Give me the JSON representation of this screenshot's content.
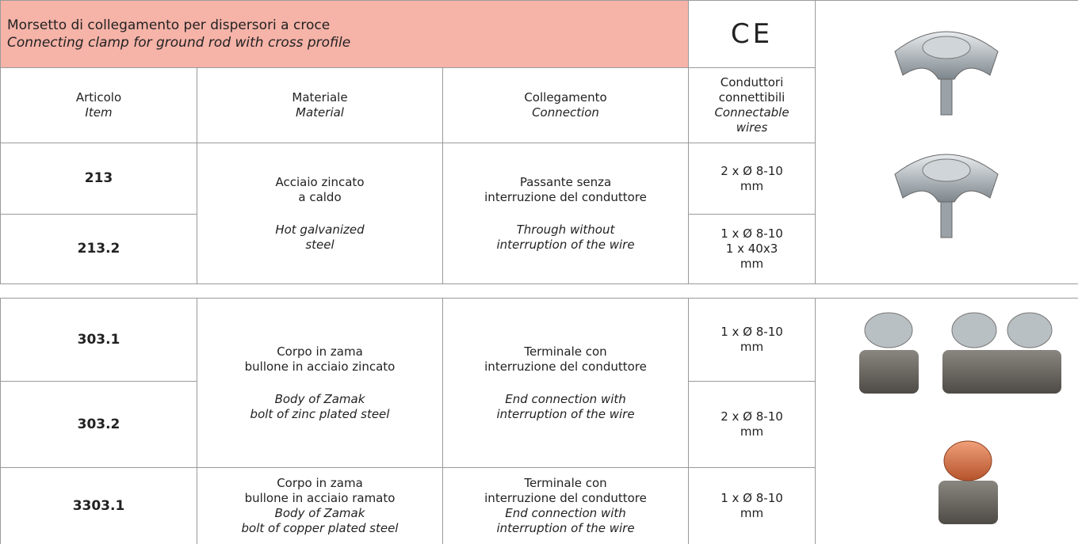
{
  "header": {
    "title": "Morsetto di collegamento per dispersori a croce",
    "subtitle": "Connecting clamp for ground rod with cross profile",
    "mark": "CE"
  },
  "columns": [
    {
      "it": [
        "Articolo"
      ],
      "en": [
        "Item"
      ]
    },
    {
      "it": [
        "Materiale"
      ],
      "en": [
        "Material"
      ]
    },
    {
      "it": [
        "Collegamento"
      ],
      "en": [
        "Connection"
      ]
    },
    {
      "it": [
        "Conduttori",
        "connettibili"
      ],
      "en": [
        "Connectable",
        "wires"
      ]
    }
  ],
  "groups": [
    {
      "rows": [
        {
          "item": "213",
          "wires": [
            "2 x Ø 8-10",
            "mm"
          ]
        },
        {
          "item": "213.2",
          "wires": [
            "1 x Ø 8-10",
            "1 x 40x3",
            "mm"
          ]
        }
      ],
      "material": {
        "it": [
          "Acciaio zincato",
          "a caldo"
        ],
        "en": [
          "Hot galvanized",
          "steel"
        ]
      },
      "connection": {
        "it": [
          "Passante senza",
          "interruzione del conduttore"
        ],
        "en": [
          "Through without",
          "interruption of the wire"
        ]
      }
    },
    {
      "rows": [
        {
          "item": "303.1",
          "wires": [
            "1 x Ø 8-10",
            "mm"
          ]
        },
        {
          "item": "303.2",
          "wires": [
            "2 x Ø 8-10",
            "mm"
          ]
        }
      ],
      "material": {
        "it": [
          "Corpo in zama",
          "bullone in acciaio zincato"
        ],
        "en": [
          "Body of Zamak",
          "bolt of zinc plated steel"
        ]
      },
      "connection": {
        "it": [
          "Terminale con",
          "interruzione del conduttore"
        ],
        "en": [
          "End connection with",
          "interruption of the wire"
        ]
      }
    },
    {
      "rows": [
        {
          "item": "3303.1",
          "wires": [
            "1 x Ø 8-10",
            "mm"
          ]
        }
      ],
      "material": {
        "it": [
          "Corpo in zama",
          "bullone in acciaio ramato"
        ],
        "en": [
          "Body of Zamak",
          "bolt of copper plated steel"
        ]
      },
      "connection": {
        "it": [
          "Terminale con",
          "interruzione del conduttore"
        ],
        "en": [
          "End connection with",
          "interruption of the wire"
        ]
      }
    }
  ]
}
